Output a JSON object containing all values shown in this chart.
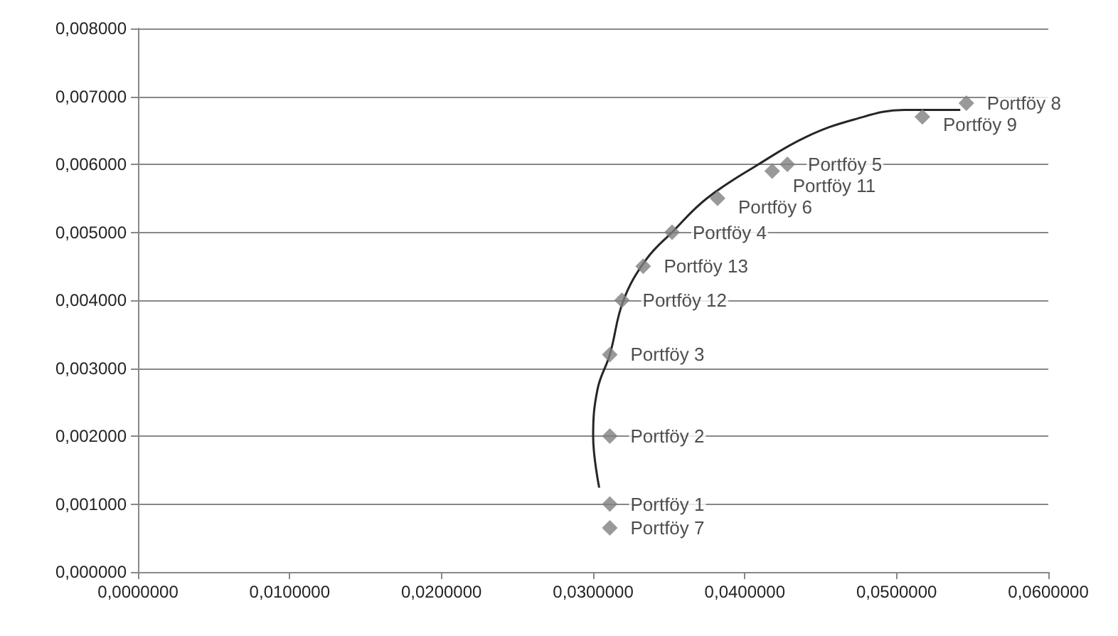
{
  "chart_data": {
    "type": "scatter",
    "xlim": [
      0,
      0.06
    ],
    "ylim": [
      0,
      0.008
    ],
    "xticks": [
      {
        "value": 0,
        "label": "0,0000000"
      },
      {
        "value": 0.01,
        "label": "0,0100000"
      },
      {
        "value": 0.02,
        "label": "0,0200000"
      },
      {
        "value": 0.03,
        "label": "0,0300000"
      },
      {
        "value": 0.04,
        "label": "0,0400000"
      },
      {
        "value": 0.05,
        "label": "0,0500000"
      },
      {
        "value": 0.06,
        "label": "0,0600000"
      }
    ],
    "yticks": [
      {
        "value": 0,
        "label": "0,000000"
      },
      {
        "value": 0.001,
        "label": "0,001000"
      },
      {
        "value": 0.002,
        "label": "0,002000"
      },
      {
        "value": 0.003,
        "label": "0,003000"
      },
      {
        "value": 0.004,
        "label": "0,004000"
      },
      {
        "value": 0.005,
        "label": "0,005000"
      },
      {
        "value": 0.006,
        "label": "0,006000"
      },
      {
        "value": 0.007,
        "label": "0,007000"
      },
      {
        "value": 0.008,
        "label": "0,008000"
      }
    ],
    "grid": "y",
    "series": [
      {
        "color": "#808080",
        "marker": "diamond",
        "x": [
          0.0311,
          0.0311,
          0.0311,
          0.0352,
          0.0428,
          0.0382,
          0.0311,
          0.0546,
          0.0517,
          0.0418,
          0.0319,
          0.0333
        ],
        "values": [
          0.001,
          0.002,
          0.0032,
          0.005,
          0.006,
          0.0055,
          0.00065,
          0.0069,
          0.0067,
          0.0059,
          0.004,
          0.0045
        ],
        "value_labels": [
          "Portföy 1",
          "Portföy 2",
          "Portföy 3",
          "Portföy 4",
          "Portföy 5",
          "Portföy 6",
          "Portföy 7",
          "Portföy 8",
          "Portföy 9",
          "Portföy 11",
          "Portföy 12",
          "Portföy 13"
        ]
      },
      {
        "type": "line",
        "color": "#262626",
        "marker": "none",
        "line_style": "solid",
        "x": [
          0.0304,
          0.03,
          0.0303,
          0.0311,
          0.032,
          0.0335,
          0.0352,
          0.0375,
          0.0409,
          0.044,
          0.0472,
          0.0505,
          0.0542
        ],
        "values": [
          0.00124,
          0.002,
          0.0027,
          0.0032,
          0.004,
          0.0046,
          0.005,
          0.0055,
          0.006,
          0.0064,
          0.00666,
          0.0068,
          0.0068
        ]
      }
    ]
  }
}
